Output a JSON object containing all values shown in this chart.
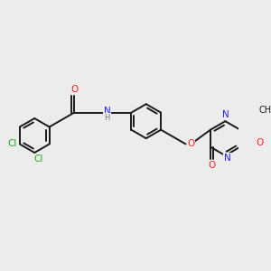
{
  "bg": "#ececec",
  "bond_color": "#1a1a1a",
  "bond_lw": 1.4,
  "atom_colors": {
    "N": "#2020ff",
    "O": "#ff2020",
    "Cl": "#20aa20",
    "H": "#777777",
    "C": "#1a1a1a"
  },
  "figsize": [
    3.0,
    3.0
  ],
  "dpi": 100,
  "xlim": [
    0.0,
    10.0
  ],
  "ylim": [
    0.5,
    10.5
  ]
}
